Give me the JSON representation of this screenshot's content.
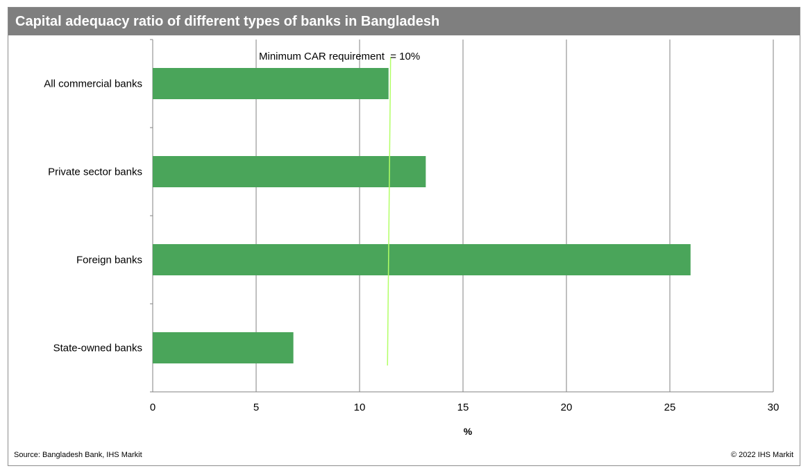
{
  "chart_data": {
    "type": "bar",
    "orientation": "horizontal",
    "title": "Capital adequacy ratio of different types of banks in Bangladesh",
    "xlabel": "%",
    "ylabel": "",
    "categories": [
      "All commercial banks",
      "Private sector banks",
      "Foreign banks",
      "State-owned banks"
    ],
    "values": [
      11.4,
      13.2,
      26.0,
      6.8
    ],
    "xlim": [
      0,
      30
    ],
    "xticks": [
      0,
      5,
      10,
      15,
      20,
      25,
      30
    ],
    "grid": "vertical",
    "legend": "none",
    "bar_color": "#4aa55a",
    "annotation": {
      "text": "Minimum CAR requirement  = 10%",
      "line_x_top": 11.5,
      "line_x_bottom": 11.35,
      "line_color": "#b2ff66"
    }
  },
  "footer": {
    "source": "Source:  Bangladesh  Bank, IHS Markit",
    "copyright": "© 2022  IHS Markit"
  }
}
